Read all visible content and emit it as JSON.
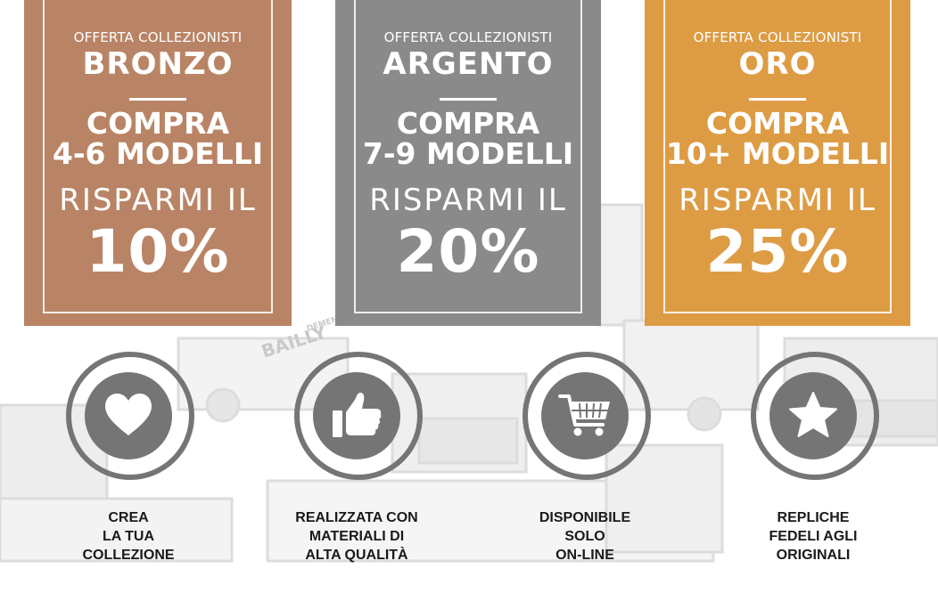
{
  "offers": [
    {
      "offer_label": "OFFERTA COLLEZIONISTI",
      "tier": "BRONZO",
      "buy_line1": "COMPRA",
      "buy_line2": "4-6 MODELLI",
      "save_label": "RISPARMI IL",
      "discount": "10%",
      "color": "#b98465"
    },
    {
      "offer_label": "OFFERTA COLLEZIONISTI",
      "tier": "ARGENTO",
      "buy_line1": "COMPRA",
      "buy_line2": "7-9 MODELLI",
      "save_label": "RISPARMI IL",
      "discount": "20%",
      "color": "#8a8a8a"
    },
    {
      "offer_label": "OFFERTA COLLEZIONISTI",
      "tier": "ORO",
      "buy_line1": "COMPRA",
      "buy_line2": "10+ MODELLI",
      "save_label": "RISPARMI IL",
      "discount": "25%",
      "color": "#dd9c44"
    }
  ],
  "features": [
    {
      "icon": "heart-icon",
      "lines": [
        "CREA",
        "LA TUA",
        "COLLEZIONE"
      ]
    },
    {
      "icon": "thumbs-up-icon",
      "lines": [
        "REALIZZATA CON",
        "MATERIALI DI",
        "ALTA QUALITÀ"
      ]
    },
    {
      "icon": "shopping-cart-icon",
      "lines": [
        "DISPONIBILE",
        "SOLO",
        "ON-LINE"
      ]
    },
    {
      "icon": "star-icon",
      "lines": [
        "REPLICHE",
        "FEDELI AGLI",
        "ORIGINALI"
      ]
    }
  ],
  "background": {
    "vehicle_labels": [
      "BAILLY",
      "DEMENAGE"
    ]
  },
  "colors": {
    "icon_gray": "#757575",
    "text_dark": "#1a1a1a"
  }
}
